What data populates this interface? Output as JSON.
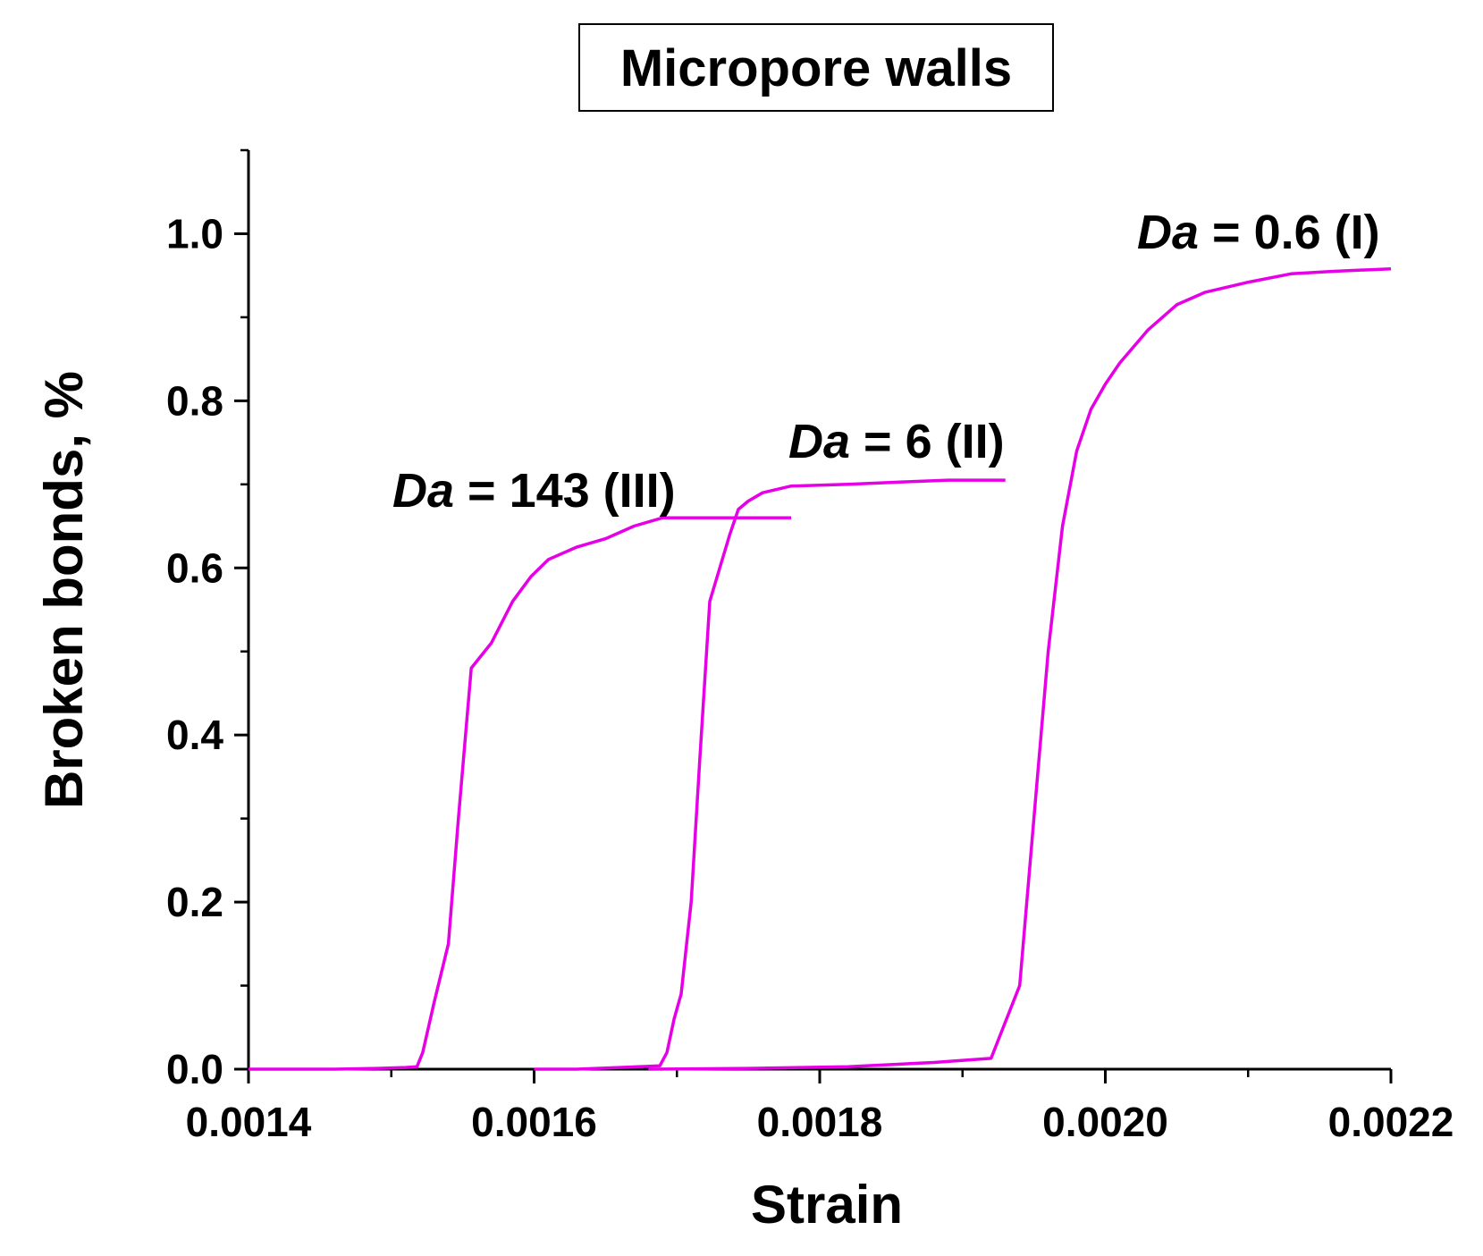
{
  "chart_data": {
    "type": "line",
    "title": "Micropore walls",
    "xlabel": "Strain",
    "ylabel": "Broken bonds, %",
    "xlim": [
      0.0014,
      0.0022
    ],
    "ylim": [
      0.0,
      1.1
    ],
    "x_ticks": [
      "0.0014",
      "0.0016",
      "0.0018",
      "0.0020",
      "0.0022"
    ],
    "x_tick_values": [
      0.0014,
      0.0016,
      0.0018,
      0.002,
      0.0022
    ],
    "y_ticks": [
      "0.0",
      "0.2",
      "0.4",
      "0.6",
      "0.8",
      "1.0"
    ],
    "y_tick_values": [
      0.0,
      0.2,
      0.4,
      0.6,
      0.8,
      1.0
    ],
    "line_color": "#e600e6",
    "series": [
      {
        "name": "Da = 143 (III)",
        "label_prefix": "Da",
        "label_suffix": " = 143 (III)",
        "x": [
          0.0014,
          0.00143,
          0.00146,
          0.00149,
          0.00151,
          0.001518,
          0.001522,
          0.00153,
          0.00154,
          0.001547,
          0.001556,
          0.00157,
          0.001585,
          0.001598,
          0.00161,
          0.00163,
          0.00165,
          0.00167,
          0.00169,
          0.00172,
          0.00175,
          0.00178
        ],
        "y": [
          0.0,
          0.0,
          0.0,
          0.001,
          0.002,
          0.003,
          0.02,
          0.08,
          0.15,
          0.3,
          0.48,
          0.51,
          0.56,
          0.59,
          0.61,
          0.625,
          0.635,
          0.65,
          0.66,
          0.66,
          0.66,
          0.66
        ]
      },
      {
        "name": "Da = 6 (II)",
        "label_prefix": "Da",
        "label_suffix": " = 6 (II)",
        "x": [
          0.0016,
          0.00163,
          0.00166,
          0.001688,
          0.001693,
          0.001698,
          0.001703,
          0.00171,
          0.001716,
          0.001723,
          0.00173,
          0.001737,
          0.001743,
          0.00175,
          0.00176,
          0.00178,
          0.00182,
          0.00186,
          0.00189,
          0.00193
        ],
        "y": [
          0.0,
          0.0,
          0.002,
          0.004,
          0.02,
          0.06,
          0.09,
          0.2,
          0.37,
          0.56,
          0.6,
          0.64,
          0.67,
          0.68,
          0.69,
          0.698,
          0.7,
          0.703,
          0.705,
          0.705
        ]
      },
      {
        "name": "Da = 0.6 (I)",
        "label_prefix": "Da",
        "label_suffix": " = 0.6 (I)",
        "x": [
          0.00168,
          0.00175,
          0.00182,
          0.00188,
          0.00192,
          0.00194,
          0.00195,
          0.00196,
          0.00197,
          0.00198,
          0.00199,
          0.002,
          0.00201,
          0.00203,
          0.00205,
          0.00207,
          0.0021,
          0.00213,
          0.00216,
          0.0022
        ],
        "y": [
          0.0,
          0.001,
          0.003,
          0.008,
          0.013,
          0.1,
          0.3,
          0.5,
          0.65,
          0.74,
          0.79,
          0.82,
          0.845,
          0.885,
          0.915,
          0.93,
          0.942,
          0.952,
          0.955,
          0.958
        ]
      }
    ]
  }
}
